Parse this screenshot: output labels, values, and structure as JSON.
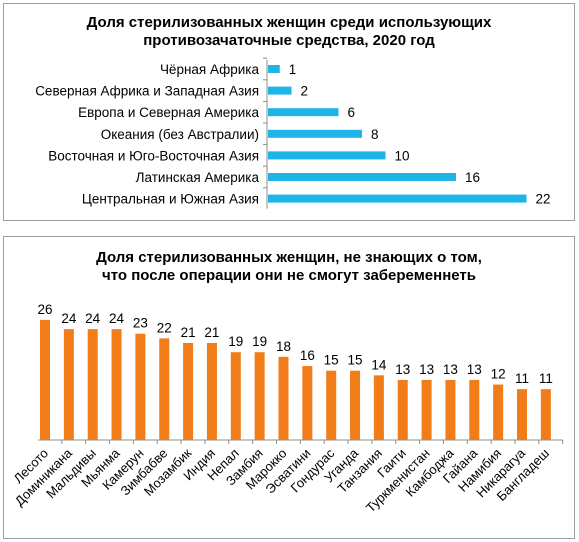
{
  "chart_data": [
    {
      "type": "bar",
      "orientation": "horizontal",
      "title": [
        "Доля стерилизованных женщин среди использующих",
        "противозачаточные средства, 2020 год"
      ],
      "categories": [
        "Чёрная Африка",
        "Северная Африка и Западная Азия",
        "Европа и Северная Америка",
        "Океания (без Австралии)",
        "Восточная и Юго-Восточная Азия",
        "Латинская Америка",
        "Центральная и Южная Азия"
      ],
      "values": [
        1,
        2,
        6,
        8,
        10,
        16,
        22
      ],
      "color": "#1fb4e6",
      "xlim": [
        0,
        22
      ],
      "data_labels": true,
      "grid": false
    },
    {
      "type": "bar",
      "orientation": "vertical",
      "title": [
        "Доля стерилизованных женщин, не знающих о том,",
        "что после операции они не смогут забеременнеть"
      ],
      "categories": [
        "Лесото",
        "Доминикана",
        "Мальдивы",
        "Мьянма",
        "Камерун",
        "Зимбабве",
        "Мозамбик",
        "Индия",
        "Непал",
        "Замбия",
        "Марокко",
        "Эсватини",
        "Гондурас",
        "Уганда",
        "Танзания",
        "Гаити",
        "Туркменистан",
        "Камбоджа",
        "Гайана",
        "Намибия",
        "Никарагуа",
        "Бангладеш"
      ],
      "values": [
        26,
        24,
        24,
        24,
        23,
        22,
        21,
        21,
        19,
        19,
        18,
        16,
        15,
        15,
        14,
        13,
        13,
        13,
        13,
        12,
        11,
        11
      ],
      "color": "#f07d1a",
      "ylim": [
        0,
        26
      ],
      "data_labels": true,
      "grid": false
    }
  ]
}
